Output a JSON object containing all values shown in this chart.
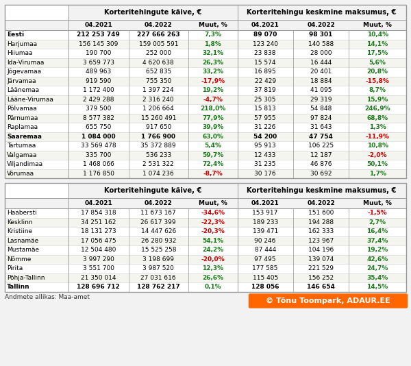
{
  "table1": {
    "title1": "Korteritehingute käive, €",
    "title2": "Korteritehingu keskmine maksumus, €",
    "rows": [
      {
        "name": "Eesti",
        "bold": true,
        "v1": "212 253 749",
        "v2": "227 666 263",
        "pct1": "7,3%",
        "pct1_color": "green",
        "v3": "89 070",
        "v4": "98 301",
        "pct2": "10,4%",
        "pct2_color": "green"
      },
      {
        "name": "Harjumaa",
        "bold": false,
        "v1": "156 145 309",
        "v2": "159 005 591",
        "pct1": "1,8%",
        "pct1_color": "green",
        "v3": "123 240",
        "v4": "140 588",
        "pct2": "14,1%",
        "pct2_color": "green"
      },
      {
        "name": "Hiiumaa",
        "bold": false,
        "v1": "190 700",
        "v2": "252 000",
        "pct1": "32,1%",
        "pct1_color": "green",
        "v3": "23 838",
        "v4": "28 000",
        "pct2": "17,5%",
        "pct2_color": "green"
      },
      {
        "name": "Ida-Virumaa",
        "bold": false,
        "v1": "3 659 773",
        "v2": "4 620 638",
        "pct1": "26,3%",
        "pct1_color": "green",
        "v3": "15 574",
        "v4": "16 444",
        "pct2": "5,6%",
        "pct2_color": "green"
      },
      {
        "name": "Jõgevamaa",
        "bold": false,
        "v1": "489 963",
        "v2": "652 835",
        "pct1": "33,2%",
        "pct1_color": "green",
        "v3": "16 895",
        "v4": "20 401",
        "pct2": "20,8%",
        "pct2_color": "green"
      },
      {
        "name": "Järvamaa",
        "bold": false,
        "v1": "919 590",
        "v2": "755 350",
        "pct1": "-17,9%",
        "pct1_color": "red",
        "v3": "22 429",
        "v4": "18 884",
        "pct2": "-15,8%",
        "pct2_color": "red"
      },
      {
        "name": "Läänemaa",
        "bold": false,
        "v1": "1 172 400",
        "v2": "1 397 224",
        "pct1": "19,2%",
        "pct1_color": "green",
        "v3": "37 819",
        "v4": "41 095",
        "pct2": "8,7%",
        "pct2_color": "green"
      },
      {
        "name": "Lääne-Virumaa",
        "bold": false,
        "v1": "2 429 288",
        "v2": "2 316 240",
        "pct1": "-4,7%",
        "pct1_color": "red",
        "v3": "25 305",
        "v4": "29 319",
        "pct2": "15,9%",
        "pct2_color": "green"
      },
      {
        "name": "Põlvamaa",
        "bold": false,
        "v1": "379 500",
        "v2": "1 206 664",
        "pct1": "218,0%",
        "pct1_color": "green",
        "v3": "15 813",
        "v4": "54 848",
        "pct2": "246,9%",
        "pct2_color": "green"
      },
      {
        "name": "Pärnumaa",
        "bold": false,
        "v1": "8 577 382",
        "v2": "15 260 491",
        "pct1": "77,9%",
        "pct1_color": "green",
        "v3": "57 955",
        "v4": "97 824",
        "pct2": "68,8%",
        "pct2_color": "green"
      },
      {
        "name": "Raplamaa",
        "bold": false,
        "v1": "655 750",
        "v2": "917 650",
        "pct1": "39,9%",
        "pct1_color": "green",
        "v3": "31 226",
        "v4": "31 643",
        "pct2": "1,3%",
        "pct2_color": "green"
      },
      {
        "name": "Saaremaa",
        "bold": true,
        "v1": "1 084 000",
        "v2": "1 766 900",
        "pct1": "63,0%",
        "pct1_color": "green",
        "v3": "54 200",
        "v4": "47 754",
        "pct2": "-11,9%",
        "pct2_color": "red"
      },
      {
        "name": "Tartumaa",
        "bold": false,
        "v1": "33 569 478",
        "v2": "35 372 889",
        "pct1": "5,4%",
        "pct1_color": "green",
        "v3": "95 913",
        "v4": "106 225",
        "pct2": "10,8%",
        "pct2_color": "green"
      },
      {
        "name": "Valgamaa",
        "bold": false,
        "v1": "335 700",
        "v2": "536 233",
        "pct1": "59,7%",
        "pct1_color": "green",
        "v3": "12 433",
        "v4": "12 187",
        "pct2": "-2,0%",
        "pct2_color": "red"
      },
      {
        "name": "Viljandimaa",
        "bold": false,
        "v1": "1 468 066",
        "v2": "2 531 322",
        "pct1": "72,4%",
        "pct1_color": "green",
        "v3": "31 235",
        "v4": "46 876",
        "pct2": "50,1%",
        "pct2_color": "green"
      },
      {
        "name": "Võrumaa",
        "bold": false,
        "v1": "1 176 850",
        "v2": "1 074 236",
        "pct1": "-8,7%",
        "pct1_color": "red",
        "v3": "30 176",
        "v4": "30 692",
        "pct2": "1,7%",
        "pct2_color": "green"
      }
    ]
  },
  "table2": {
    "title1": "Korteritehingute käive, €",
    "title2": "Korteritehingu keskmine maksumus, €",
    "rows": [
      {
        "name": "Haabersti",
        "bold": false,
        "v1": "17 854 318",
        "v2": "11 673 167",
        "pct1": "-34,6%",
        "pct1_color": "red",
        "v3": "153 917",
        "v4": "151 600",
        "pct2": "-1,5%",
        "pct2_color": "red"
      },
      {
        "name": "Kesklinn",
        "bold": false,
        "v1": "34 251 162",
        "v2": "26 617 399",
        "pct1": "-22,3%",
        "pct1_color": "red",
        "v3": "189 233",
        "v4": "194 288",
        "pct2": "2,7%",
        "pct2_color": "green"
      },
      {
        "name": "Kristiine",
        "bold": false,
        "v1": "18 131 273",
        "v2": "14 447 626",
        "pct1": "-20,3%",
        "pct1_color": "red",
        "v3": "139 471",
        "v4": "162 333",
        "pct2": "16,4%",
        "pct2_color": "green"
      },
      {
        "name": "Lasnamäe",
        "bold": false,
        "v1": "17 056 475",
        "v2": "26 280 932",
        "pct1": "54,1%",
        "pct1_color": "green",
        "v3": "90 246",
        "v4": "123 967",
        "pct2": "37,4%",
        "pct2_color": "green"
      },
      {
        "name": "Mustamäe",
        "bold": false,
        "v1": "12 504 480",
        "v2": "15 525 258",
        "pct1": "24,2%",
        "pct1_color": "green",
        "v3": "87 444",
        "v4": "104 196",
        "pct2": "19,2%",
        "pct2_color": "green"
      },
      {
        "name": "Nõmme",
        "bold": false,
        "v1": "3 997 290",
        "v2": "3 198 699",
        "pct1": "-20,0%",
        "pct1_color": "red",
        "v3": "97 495",
        "v4": "139 074",
        "pct2": "42,6%",
        "pct2_color": "green"
      },
      {
        "name": "Pirita",
        "bold": false,
        "v1": "3 551 700",
        "v2": "3 987 520",
        "pct1": "12,3%",
        "pct1_color": "green",
        "v3": "177 585",
        "v4": "221 529",
        "pct2": "24,7%",
        "pct2_color": "green"
      },
      {
        "name": "Põhja-Tallinn",
        "bold": false,
        "v1": "21 350 014",
        "v2": "27 031 616",
        "pct1": "26,6%",
        "pct1_color": "green",
        "v3": "115 405",
        "v4": "156 252",
        "pct2": "35,4%",
        "pct2_color": "green"
      },
      {
        "name": "Tallinn",
        "bold": true,
        "v1": "128 696 712",
        "v2": "128 762 217",
        "pct1": "0,1%",
        "pct1_color": "green",
        "v3": "128 056",
        "v4": "146 654",
        "pct2": "14,5%",
        "pct2_color": "green"
      }
    ]
  },
  "footer": "Andmete allikas: Maa-amet",
  "watermark": "© Tõnu Toompark, ADAUR.EE",
  "bg_color": "#f2f2f2",
  "header_bg": "#f2f2f2",
  "green_color": "#1a7a1a",
  "red_color": "#cc0000",
  "border_color": "#999999",
  "row_sep_color": "#cccccc",
  "title_bg": "#f2f2f2"
}
